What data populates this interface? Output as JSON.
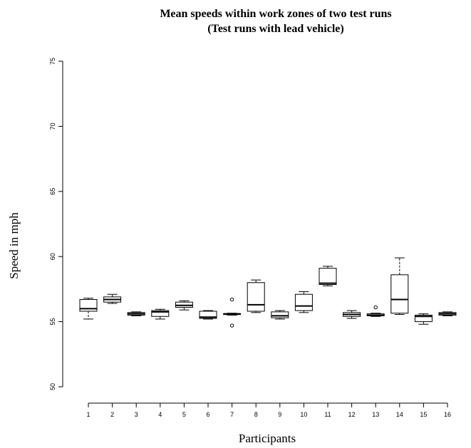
{
  "chart_data": {
    "type": "box",
    "title": "Mean speeds within work zones of two test runs",
    "subtitle": "(Test runs with lead vehicle)",
    "xlabel": "Participants",
    "ylabel": "Speed in mph",
    "ylim": [
      49.5,
      75.8
    ],
    "yticks": [
      50,
      55,
      60,
      65,
      70,
      75
    ],
    "categories": [
      "1",
      "2",
      "3",
      "4",
      "5",
      "6",
      "7",
      "8",
      "9",
      "10",
      "11",
      "12",
      "13",
      "14",
      "15",
      "16"
    ],
    "boxes": [
      {
        "whisker_low": 55.2,
        "q1": 55.8,
        "median": 56.0,
        "q3": 56.7,
        "whisker_high": 56.8,
        "outliers": []
      },
      {
        "whisker_low": 56.4,
        "q1": 56.5,
        "median": 56.7,
        "q3": 56.9,
        "whisker_high": 57.1,
        "outliers": []
      },
      {
        "whisker_low": 55.45,
        "q1": 55.5,
        "median": 55.6,
        "q3": 55.7,
        "whisker_high": 55.75,
        "outliers": []
      },
      {
        "whisker_low": 55.2,
        "q1": 55.4,
        "median": 55.75,
        "q3": 55.85,
        "whisker_high": 55.95,
        "outliers": []
      },
      {
        "whisker_low": 55.9,
        "q1": 56.1,
        "median": 56.25,
        "q3": 56.5,
        "whisker_high": 56.6,
        "outliers": []
      },
      {
        "whisker_low": 55.2,
        "q1": 55.25,
        "median": 55.35,
        "q3": 55.8,
        "whisker_high": 55.85,
        "outliers": []
      },
      {
        "whisker_low": 55.5,
        "q1": 55.55,
        "median": 55.6,
        "q3": 55.6,
        "whisker_high": 55.65,
        "outliers": [
          56.7,
          54.7
        ]
      },
      {
        "whisker_low": 55.7,
        "q1": 55.8,
        "median": 56.3,
        "q3": 58.0,
        "whisker_high": 58.2,
        "outliers": []
      },
      {
        "whisker_low": 55.2,
        "q1": 55.3,
        "median": 55.45,
        "q3": 55.75,
        "whisker_high": 55.85,
        "outliers": []
      },
      {
        "whisker_low": 55.7,
        "q1": 55.85,
        "median": 56.2,
        "q3": 57.1,
        "whisker_high": 57.3,
        "outliers": []
      },
      {
        "whisker_low": 57.75,
        "q1": 57.85,
        "median": 57.95,
        "q3": 59.1,
        "whisker_high": 59.25,
        "outliers": []
      },
      {
        "whisker_low": 55.25,
        "q1": 55.4,
        "median": 55.55,
        "q3": 55.7,
        "whisker_high": 55.85,
        "outliers": []
      },
      {
        "whisker_low": 55.4,
        "q1": 55.45,
        "median": 55.5,
        "q3": 55.6,
        "whisker_high": 55.65,
        "outliers": [
          56.1
        ]
      },
      {
        "whisker_low": 55.55,
        "q1": 55.65,
        "median": 56.7,
        "q3": 58.6,
        "whisker_high": 59.9,
        "outliers": []
      },
      {
        "whisker_low": 54.8,
        "q1": 55.0,
        "median": 55.4,
        "q3": 55.5,
        "whisker_high": 55.6,
        "outliers": []
      },
      {
        "whisker_low": 55.45,
        "q1": 55.5,
        "median": 55.6,
        "q3": 55.7,
        "whisker_high": 55.75,
        "outliers": []
      }
    ],
    "grid": false,
    "legend": "none"
  }
}
